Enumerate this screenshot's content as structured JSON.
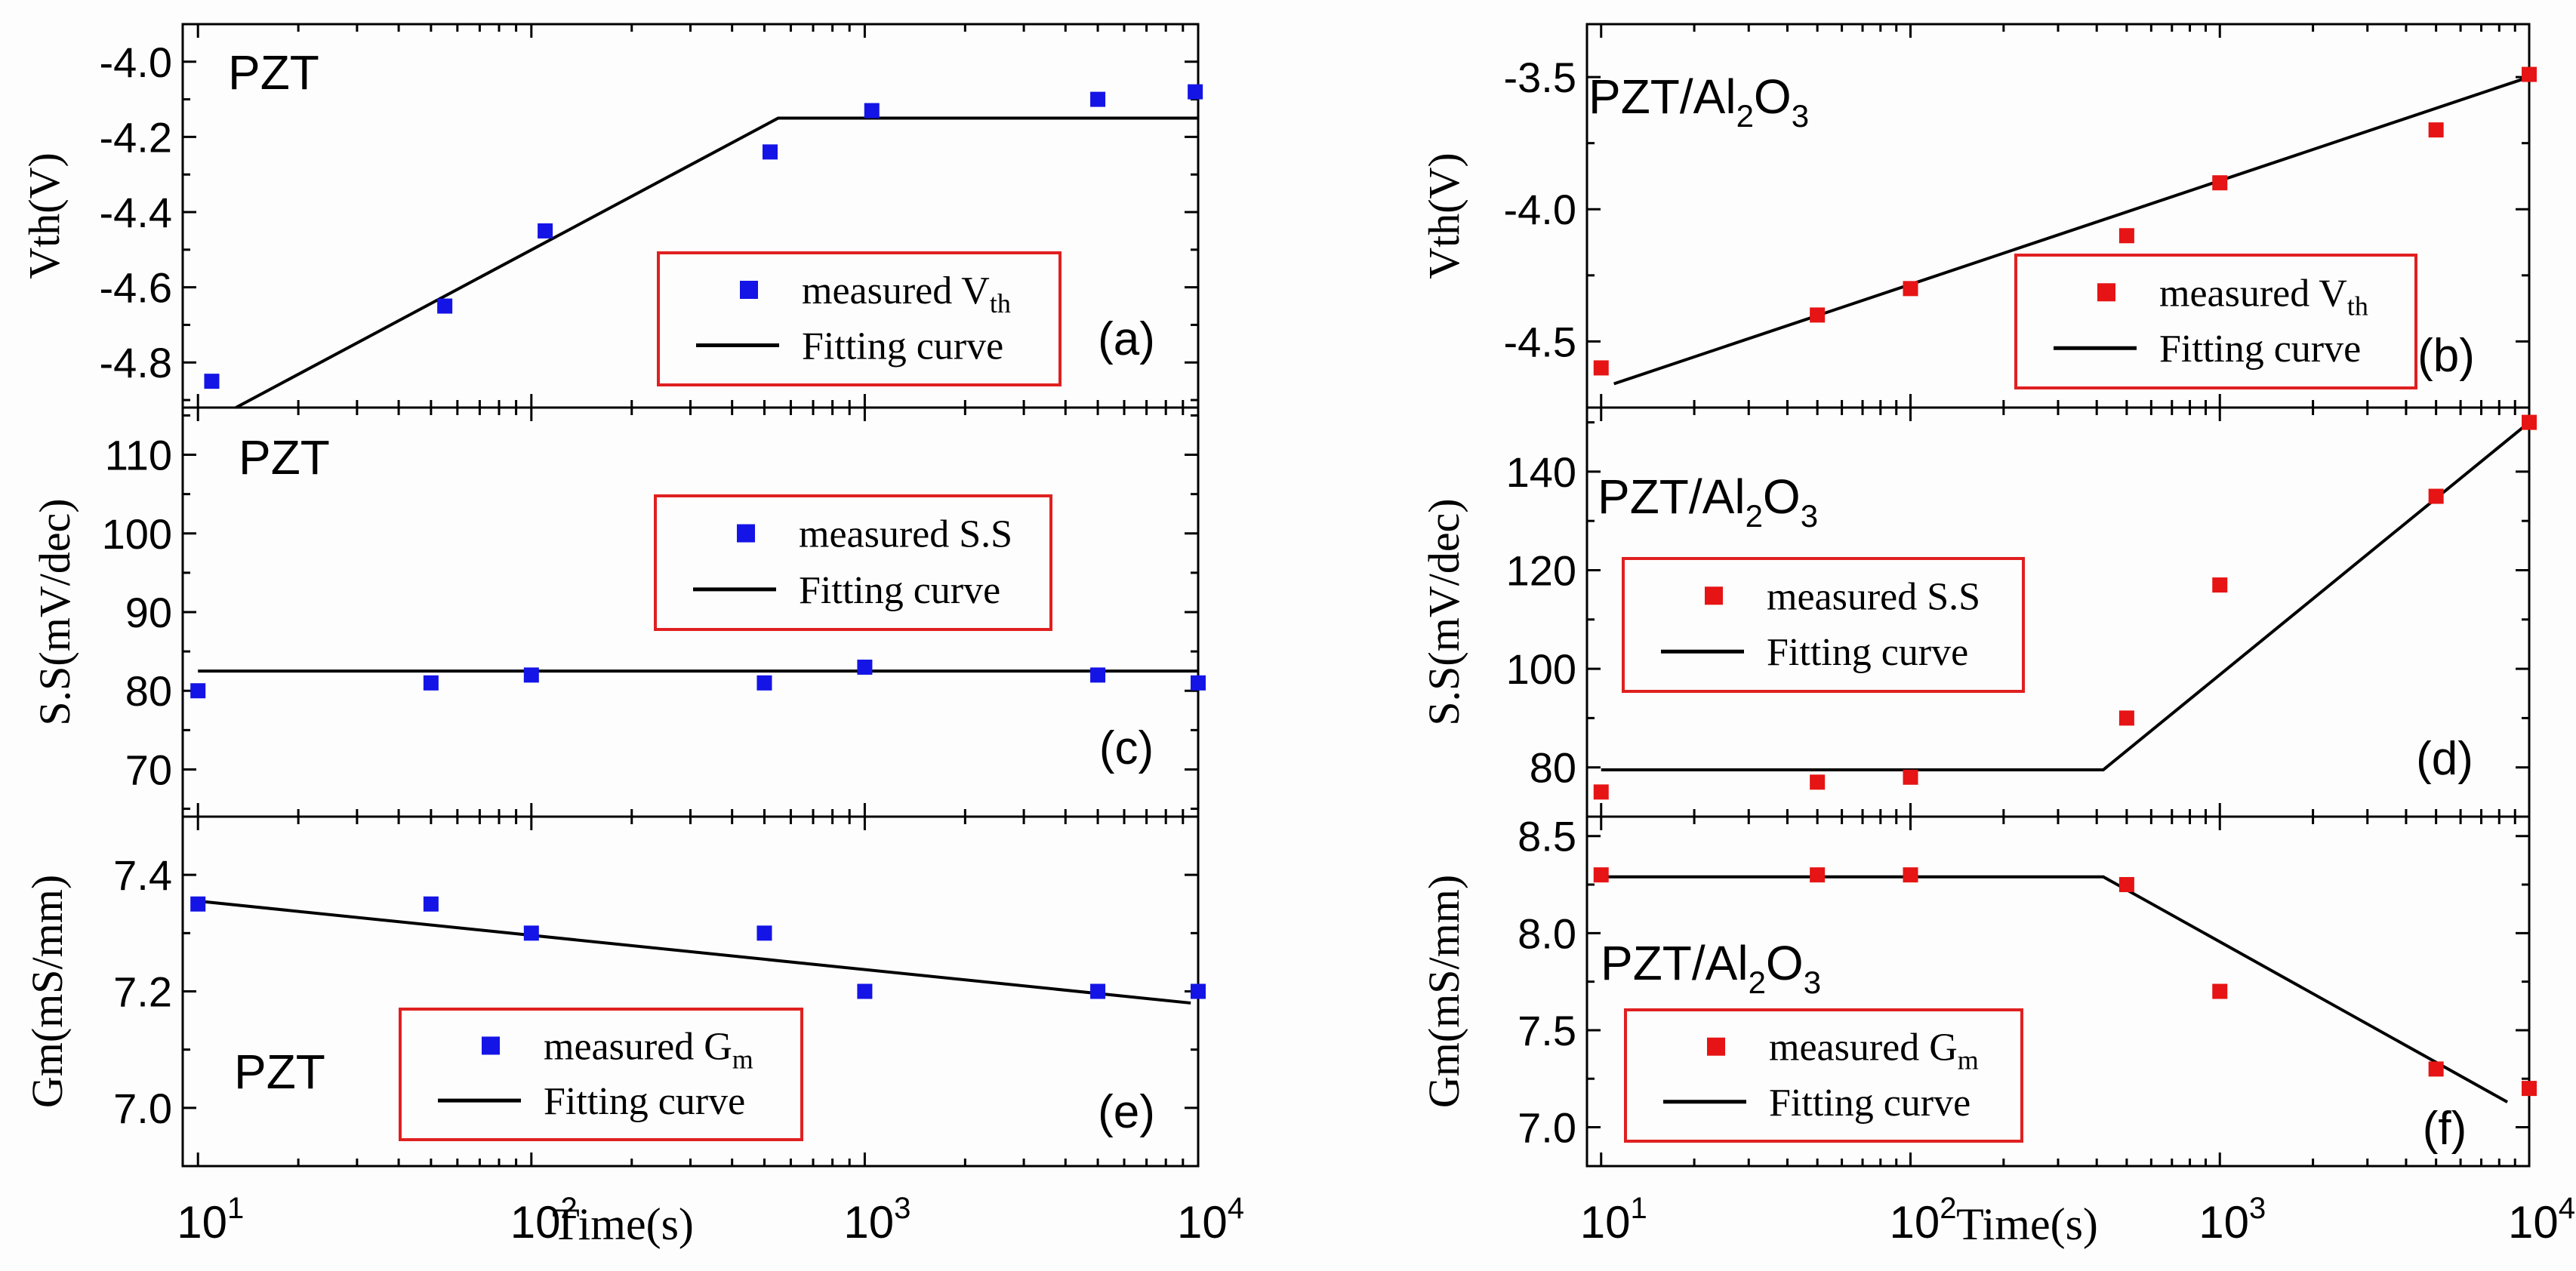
{
  "figure": {
    "x_axis_label": "Time(s)",
    "x_tick_labels": [
      {
        "base": "10",
        "exp": "1"
      },
      {
        "base": "10",
        "exp": "2"
      },
      {
        "base": "10",
        "exp": "3"
      },
      {
        "base": "10",
        "exp": "4"
      }
    ]
  },
  "colors": {
    "blue": "#1414e6",
    "red": "#e61414",
    "legend_border": "#e02020",
    "axis": "#000000"
  },
  "chart_data": [
    {
      "id": "a",
      "type": "scatter",
      "panel_label": "(a)",
      "material": "PZT",
      "ylabel": "Vth(V)",
      "xscale": "log",
      "xlim": [
        9,
        10000
      ],
      "ylim": [
        -4.92,
        -3.9
      ],
      "yticks": [
        -4.8,
        -4.6,
        -4.4,
        -4.2,
        -4.0
      ],
      "ytick_labels": [
        "-4.8",
        "-4.6",
        "-4.4",
        "-4.2",
        "-4.0"
      ],
      "color": "blue",
      "legend": {
        "measured": "measured V",
        "measured_sub": "th",
        "fit": "Fitting curve"
      },
      "measured": [
        [
          11,
          -4.85
        ],
        [
          55,
          -4.65
        ],
        [
          110,
          -4.45
        ],
        [
          520,
          -4.24
        ],
        [
          1050,
          -4.13
        ],
        [
          5000,
          -4.1
        ],
        [
          9800,
          -4.08
        ]
      ],
      "fit": [
        [
          13,
          -4.92
        ],
        [
          550,
          -4.15
        ],
        [
          12000,
          -4.15
        ]
      ]
    },
    {
      "id": "b",
      "type": "scatter",
      "panel_label": "(b)",
      "material": "PZT/Al",
      "material_sub": "2",
      "material_tail": "O",
      "material_sub2": "3",
      "ylabel": "Vth(V)",
      "xscale": "log",
      "xlim": [
        9,
        10000
      ],
      "ylim": [
        -4.75,
        -3.3
      ],
      "yticks": [
        -4.5,
        -4.0,
        -3.5
      ],
      "ytick_labels": [
        "-4.5",
        "-4.0",
        "-3.5"
      ],
      "color": "red",
      "legend": {
        "measured": "measured V",
        "measured_sub": "th",
        "fit": "Fitting curve"
      },
      "measured": [
        [
          10,
          -4.6
        ],
        [
          50,
          -4.4
        ],
        [
          100,
          -4.3
        ],
        [
          500,
          -4.1
        ],
        [
          1000,
          -3.9
        ],
        [
          5000,
          -3.7
        ],
        [
          10000,
          -3.49
        ]
      ],
      "fit": [
        [
          11,
          -4.66
        ],
        [
          10000,
          -3.5
        ]
      ]
    },
    {
      "id": "c",
      "type": "scatter",
      "panel_label": "(c)",
      "material": "PZT",
      "ylabel": "S.S(mV/dec)",
      "xscale": "log",
      "xlim": [
        9,
        10000
      ],
      "ylim": [
        64,
        116
      ],
      "yticks": [
        70,
        80,
        90,
        100,
        110
      ],
      "ytick_labels": [
        "70",
        "80",
        "90",
        "100",
        "110"
      ],
      "color": "blue",
      "legend": {
        "measured": "measured S.S",
        "fit": "Fitting curve"
      },
      "measured": [
        [
          10,
          80
        ],
        [
          50,
          81
        ],
        [
          100,
          82
        ],
        [
          500,
          81
        ],
        [
          1000,
          83
        ],
        [
          5000,
          82
        ],
        [
          10000,
          81
        ]
      ],
      "fit": [
        [
          10,
          82.5
        ],
        [
          10000,
          82.5
        ]
      ]
    },
    {
      "id": "d",
      "type": "scatter",
      "panel_label": "(d)",
      "material": "PZT/Al",
      "material_sub": "2",
      "material_tail": "O",
      "material_sub2": "3",
      "ylabel": "S.S(mV/dec)",
      "xscale": "log",
      "xlim": [
        9,
        10000
      ],
      "ylim": [
        70,
        153
      ],
      "yticks": [
        80,
        100,
        120,
        140
      ],
      "ytick_labels": [
        "80",
        "100",
        "120",
        "140"
      ],
      "color": "red",
      "legend": {
        "measured": "measured S.S",
        "fit": "Fitting curve"
      },
      "measured": [
        [
          10,
          75
        ],
        [
          50,
          77
        ],
        [
          100,
          78
        ],
        [
          500,
          90
        ],
        [
          1000,
          117
        ],
        [
          5000,
          135
        ],
        [
          10000,
          150
        ]
      ],
      "fit": [
        [
          10,
          79.5
        ],
        [
          420,
          79.5
        ],
        [
          10000,
          150
        ]
      ]
    },
    {
      "id": "e",
      "type": "scatter",
      "panel_label": "(e)",
      "material": "PZT",
      "ylabel": "Gm(mS/mm)",
      "xscale": "log",
      "xlim": [
        9,
        10000
      ],
      "ylim": [
        6.9,
        7.5
      ],
      "yticks": [
        7.0,
        7.2,
        7.4
      ],
      "ytick_labels": [
        "7.0",
        "7.2",
        "7.4"
      ],
      "color": "blue",
      "legend": {
        "measured": "measured G",
        "measured_sub": "m",
        "fit": "Fitting curve"
      },
      "measured": [
        [
          10,
          7.35
        ],
        [
          50,
          7.35
        ],
        [
          100,
          7.3
        ],
        [
          500,
          7.3
        ],
        [
          1000,
          7.2
        ],
        [
          5000,
          7.2
        ],
        [
          10000,
          7.2
        ]
      ],
      "fit": [
        [
          10,
          7.355
        ],
        [
          9500,
          7.18
        ]
      ]
    },
    {
      "id": "f",
      "type": "scatter",
      "panel_label": "(f)",
      "material": "PZT/Al",
      "material_sub": "2",
      "material_tail": "O",
      "material_sub2": "3",
      "ylabel": "Gm(mS/mm)",
      "xscale": "log",
      "xlim": [
        9,
        10000
      ],
      "ylim": [
        6.8,
        8.6
      ],
      "yticks": [
        7.0,
        7.5,
        8.0,
        8.5
      ],
      "ytick_labels": [
        "7.0",
        "7.5",
        "8.0",
        "8.5"
      ],
      "color": "red",
      "legend": {
        "measured": "measured G",
        "measured_sub": "m",
        "fit": "Fitting curve"
      },
      "measured": [
        [
          10,
          8.3
        ],
        [
          50,
          8.3
        ],
        [
          100,
          8.3
        ],
        [
          500,
          8.25
        ],
        [
          1000,
          7.7
        ],
        [
          5000,
          7.3
        ],
        [
          10000,
          7.2
        ]
      ],
      "fit": [
        [
          10,
          8.29
        ],
        [
          420,
          8.29
        ],
        [
          8500,
          7.13
        ]
      ]
    }
  ]
}
